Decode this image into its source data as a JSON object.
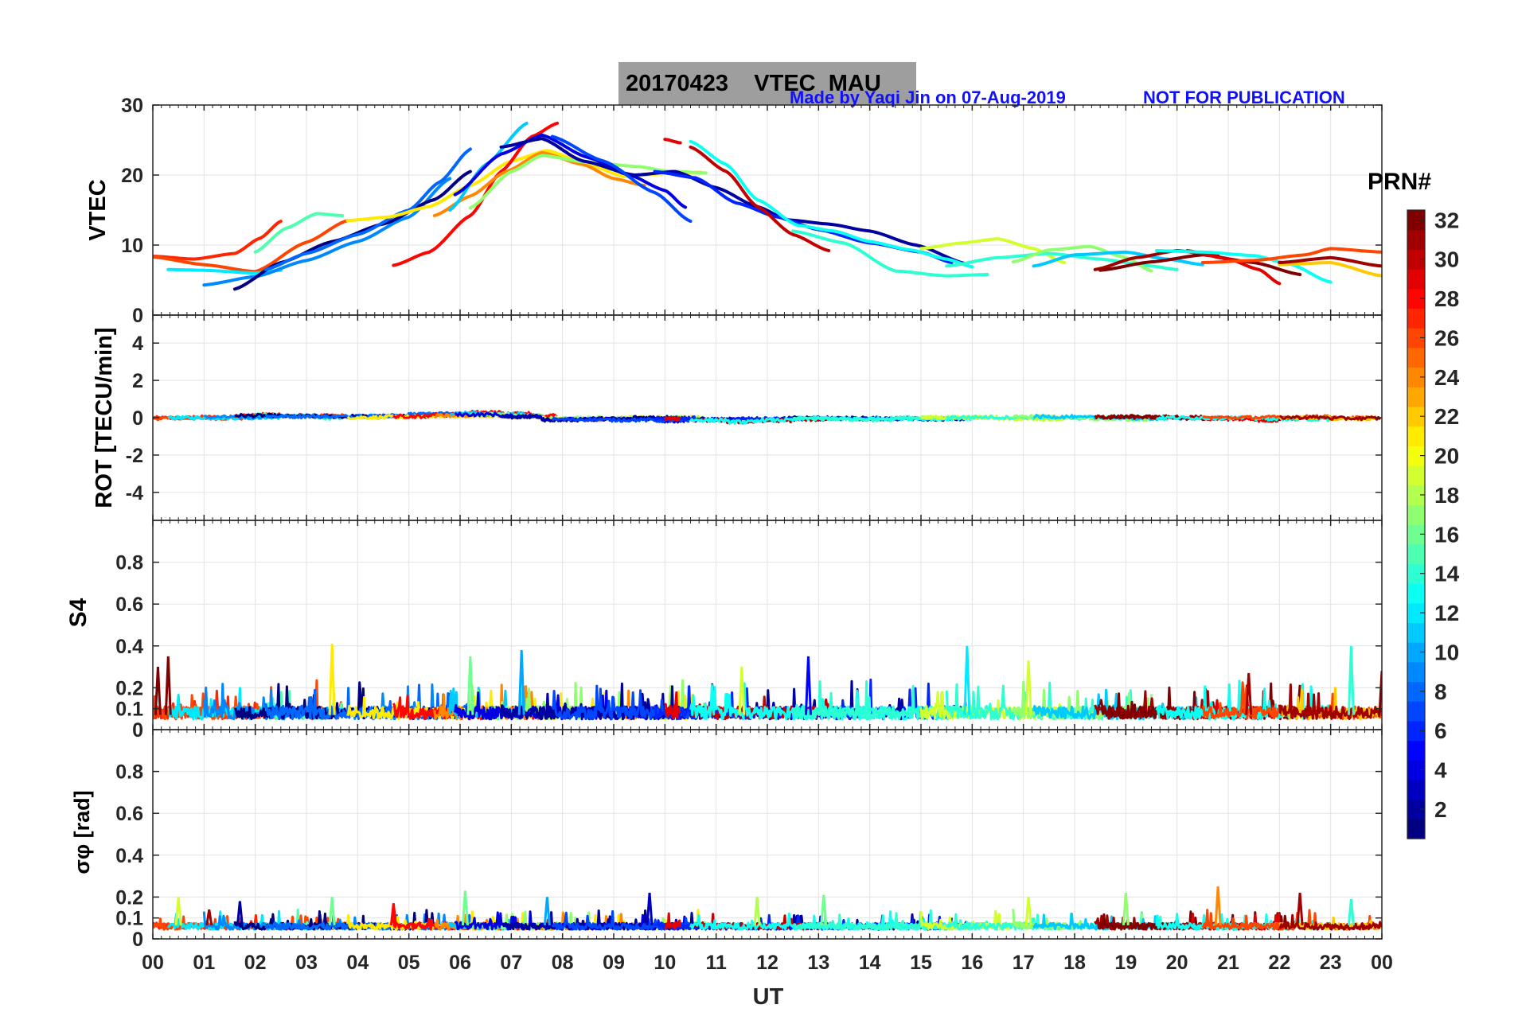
{
  "header": {
    "title": "20170423    VTEC  MAU",
    "credit": "Made by Yaqi Jin on 07-Aug-2019",
    "notice": "NOT FOR PUBLICATION"
  },
  "colorbar": {
    "label": "PRN#",
    "ticks": [
      "2",
      "4",
      "6",
      "8",
      "10",
      "12",
      "14",
      "16",
      "18",
      "20",
      "22",
      "24",
      "26",
      "28",
      "30",
      "32"
    ],
    "range": [
      1,
      32
    ],
    "colormap": "jet"
  },
  "x_axis": {
    "label": "UT",
    "ticks": [
      "00",
      "01",
      "02",
      "03",
      "04",
      "05",
      "06",
      "07",
      "08",
      "09",
      "10",
      "11",
      "12",
      "13",
      "14",
      "15",
      "16",
      "17",
      "18",
      "19",
      "20",
      "21",
      "22",
      "23",
      "00"
    ],
    "range_hours": [
      0,
      24
    ]
  },
  "chart_data": [
    {
      "type": "line",
      "panel": "vtec",
      "ylabel": "VTEC",
      "ylim": [
        0,
        30
      ],
      "yticks": [
        "0",
        "10",
        "20",
        "30"
      ],
      "grid": true,
      "series": [
        {
          "prn": 27,
          "x": [
            0,
            0.8,
            1.6,
            2.1,
            2.5
          ],
          "values": [
            8.4,
            8.0,
            8.8,
            11.0,
            13.4
          ]
        },
        {
          "prn": 26,
          "x": [
            0,
            1.0,
            2.0,
            3.0,
            3.8
          ],
          "values": [
            8.3,
            7.2,
            6.2,
            10.4,
            13.5
          ]
        },
        {
          "prn": 15,
          "x": [
            2.0,
            2.6,
            3.2,
            3.7
          ],
          "values": [
            9.0,
            12.4,
            14.5,
            14.2
          ]
        },
        {
          "prn": 12,
          "x": [
            0.3,
            1.0,
            2.0,
            2.5
          ],
          "values": [
            6.5,
            6.4,
            6.0,
            6.4
          ]
        },
        {
          "prn": 9,
          "x": [
            1.0,
            2.0,
            3.0,
            4.0,
            5.0,
            5.8
          ],
          "values": [
            4.3,
            5.5,
            7.8,
            10.5,
            14.0,
            19.5
          ]
        },
        {
          "prn": 1,
          "x": [
            1.6,
            2.5,
            3.5,
            4.5,
            5.5,
            6.2
          ],
          "values": [
            3.7,
            7.5,
            10.5,
            13.0,
            16.5,
            20.5
          ]
        },
        {
          "prn": 8,
          "x": [
            2.2,
            3.0,
            4.0,
            5.0,
            5.6,
            6.2
          ],
          "values": [
            6.5,
            8.8,
            11.5,
            15.0,
            19.0,
            23.7
          ]
        },
        {
          "prn": 21,
          "x": [
            3.8,
            4.6,
            5.4,
            6.2,
            7.0,
            7.7,
            8.5,
            9.2,
            10.0,
            10.7
          ],
          "values": [
            13.5,
            14.0,
            15.5,
            18.5,
            22.0,
            23.5,
            21.5,
            19.8,
            20.2,
            20.4
          ]
        },
        {
          "prn": 28,
          "x": [
            4.7,
            5.4,
            6.2,
            6.8,
            7.4,
            7.9
          ],
          "values": [
            7.1,
            9.0,
            14.2,
            20.5,
            25.5,
            27.4
          ]
        },
        {
          "prn": 24,
          "x": [
            5.5,
            6.2,
            6.9,
            7.6,
            8.4,
            9.0,
            9.6
          ],
          "values": [
            14.2,
            17.0,
            20.5,
            23.2,
            21.5,
            19.5,
            18.5
          ]
        },
        {
          "prn": 11,
          "x": [
            5.8,
            6.5,
            7.3
          ],
          "values": [
            15.0,
            21.5,
            27.4
          ]
        },
        {
          "prn": 17,
          "x": [
            6.2,
            7.0,
            7.6,
            8.5,
            9.5,
            10.0,
            10.8
          ],
          "values": [
            15.3,
            20.5,
            22.8,
            21.8,
            21.2,
            20.6,
            20.3
          ]
        },
        {
          "prn": 4,
          "x": [
            5.9,
            6.8,
            7.6,
            8.5,
            9.3,
            10.0,
            10.4
          ],
          "values": [
            17.2,
            23.0,
            25.7,
            22.5,
            20.0,
            17.8,
            15.4
          ]
        },
        {
          "prn": 2,
          "x": [
            6.8,
            7.6,
            8.4,
            9.4,
            10.2,
            11.0,
            11.8,
            12.4,
            13.2,
            14.0,
            14.9,
            15.9
          ],
          "values": [
            24.0,
            25.2,
            22.0,
            20.0,
            20.5,
            18.2,
            15.5,
            13.6,
            13.0,
            12.0,
            10.0,
            7.3
          ]
        },
        {
          "prn": 7,
          "x": [
            7.8,
            8.8,
            9.8,
            10.5
          ],
          "values": [
            25.5,
            22.0,
            17.5,
            13.4
          ]
        },
        {
          "prn": 6,
          "x": [
            9.8,
            10.6,
            11.4,
            12.2,
            13.0,
            14.0,
            15.0,
            15.6
          ],
          "values": [
            20.5,
            19.6,
            16.0,
            14.0,
            12.2,
            10.3,
            9.0,
            7.5
          ]
        },
        {
          "prn": 29,
          "x": [
            10.0,
            10.3
          ],
          "values": [
            25.1,
            24.6
          ]
        },
        {
          "prn": 30,
          "x": [
            10.5,
            11.2,
            11.8,
            12.5,
            13.2
          ],
          "values": [
            24.0,
            20.5,
            15.5,
            11.5,
            9.2
          ]
        },
        {
          "prn": 13,
          "x": [
            10.5,
            11.2,
            11.8,
            12.6,
            13.3,
            14.0,
            14.8,
            15.5,
            16.0
          ],
          "values": [
            24.8,
            21.5,
            16.5,
            12.8,
            12.0,
            10.5,
            9.3,
            8.0,
            6.9
          ]
        },
        {
          "prn": 14,
          "x": [
            12.5,
            13.5,
            14.5,
            15.5,
            16.3
          ],
          "values": [
            12.0,
            10.3,
            6.3,
            5.6,
            5.8
          ]
        },
        {
          "prn": 19,
          "x": [
            15.0,
            15.8,
            16.5,
            17.2,
            17.8
          ],
          "values": [
            9.5,
            10.3,
            10.9,
            9.5,
            7.5
          ]
        },
        {
          "prn": 14,
          "x": [
            15.5,
            16.5,
            17.5,
            18.5,
            19.5,
            20.0
          ],
          "values": [
            7.0,
            8.2,
            8.8,
            8.0,
            7.0,
            6.5
          ]
        },
        {
          "prn": 17,
          "x": [
            16.8,
            17.5,
            18.3,
            19.0,
            19.5
          ],
          "values": [
            7.6,
            9.3,
            9.8,
            8.2,
            6.3
          ]
        },
        {
          "prn": 11,
          "x": [
            17.2,
            18.0,
            19.0,
            19.8,
            20.5
          ],
          "values": [
            7.0,
            8.6,
            9.0,
            8.0,
            7.2
          ]
        },
        {
          "prn": 31,
          "x": [
            18.4,
            19.2,
            20.0,
            20.8
          ],
          "values": [
            6.5,
            8.2,
            9.2,
            8.5
          ]
        },
        {
          "prn": 32,
          "x": [
            18.5,
            19.5,
            20.5,
            21.5,
            22.4
          ],
          "values": [
            6.4,
            7.6,
            8.6,
            7.5,
            5.8
          ]
        },
        {
          "prn": 29,
          "x": [
            20.2,
            21.0,
            21.6,
            22.0
          ],
          "values": [
            9.2,
            8.0,
            6.5,
            4.5
          ]
        },
        {
          "prn": 13,
          "x": [
            19.6,
            20.5,
            21.5,
            22.2,
            23.0
          ],
          "values": [
            9.2,
            9.0,
            8.5,
            7.3,
            4.7
          ]
        },
        {
          "prn": 26,
          "x": [
            20.5,
            21.5,
            22.5,
            23.0,
            24.0
          ],
          "values": [
            7.5,
            7.8,
            8.6,
            9.5,
            9.0
          ]
        },
        {
          "prn": 22,
          "x": [
            22.0,
            23.0,
            24.0
          ],
          "values": [
            7.2,
            7.5,
            5.6
          ]
        },
        {
          "prn": 31,
          "x": [
            22.0,
            23.0,
            24.0
          ],
          "values": [
            7.5,
            8.2,
            7.0
          ]
        }
      ]
    },
    {
      "type": "line",
      "panel": "rot",
      "ylabel": "ROT [TECU/min]",
      "ylim": [
        -5.5,
        5.5
      ],
      "yticks": [
        "4",
        "2",
        "0",
        "-2",
        "-4"
      ],
      "grid": true,
      "description_values": {
        "baseline": 0,
        "max_excursion": 0.9,
        "min_excursion": -0.6
      }
    },
    {
      "type": "line",
      "panel": "s4",
      "ylabel": "S4",
      "ylim": [
        0,
        1.0
      ],
      "yticks": [
        "0",
        "0.1",
        "0.2",
        "0.4",
        "0.6",
        "0.8"
      ],
      "grid": true,
      "peaks": [
        {
          "x": 0.1,
          "value": 0.3,
          "prn": 32
        },
        {
          "x": 0.3,
          "value": 0.35,
          "prn": 32
        },
        {
          "x": 3.5,
          "value": 0.41,
          "prn": 21
        },
        {
          "x": 6.2,
          "value": 0.35,
          "prn": 16
        },
        {
          "x": 7.2,
          "value": 0.38,
          "prn": 10
        },
        {
          "x": 11.5,
          "value": 0.3,
          "prn": 19
        },
        {
          "x": 12.8,
          "value": 0.35,
          "prn": 5
        },
        {
          "x": 15.9,
          "value": 0.4,
          "prn": 12
        },
        {
          "x": 17.1,
          "value": 0.33,
          "prn": 19
        },
        {
          "x": 21.4,
          "value": 0.27,
          "prn": 31
        },
        {
          "x": 23.4,
          "value": 0.4,
          "prn": 14
        },
        {
          "x": 24.0,
          "value": 0.28,
          "prn": 32
        }
      ]
    },
    {
      "type": "line",
      "panel": "sigma_phi",
      "ylabel": "σφ [rad]",
      "ylim": [
        0,
        1.0
      ],
      "yticks": [
        "0",
        "0.1",
        "0.2",
        "0.4",
        "0.6",
        "0.8"
      ],
      "grid": true,
      "peaks": [
        {
          "x": 0.5,
          "value": 0.2,
          "prn": 19
        },
        {
          "x": 1.1,
          "value": 0.14,
          "prn": 31
        },
        {
          "x": 1.7,
          "value": 0.18,
          "prn": 2
        },
        {
          "x": 3.5,
          "value": 0.2,
          "prn": 16
        },
        {
          "x": 4.7,
          "value": 0.17,
          "prn": 28
        },
        {
          "x": 6.1,
          "value": 0.23,
          "prn": 16
        },
        {
          "x": 7.7,
          "value": 0.2,
          "prn": 10
        },
        {
          "x": 9.7,
          "value": 0.22,
          "prn": 3
        },
        {
          "x": 11.8,
          "value": 0.2,
          "prn": 18
        },
        {
          "x": 13.1,
          "value": 0.21,
          "prn": 16
        },
        {
          "x": 17.1,
          "value": 0.2,
          "prn": 19
        },
        {
          "x": 19.0,
          "value": 0.22,
          "prn": 17
        },
        {
          "x": 20.8,
          "value": 0.25,
          "prn": 24
        },
        {
          "x": 22.4,
          "value": 0.22,
          "prn": 31
        },
        {
          "x": 23.4,
          "value": 0.19,
          "prn": 14
        }
      ]
    }
  ]
}
